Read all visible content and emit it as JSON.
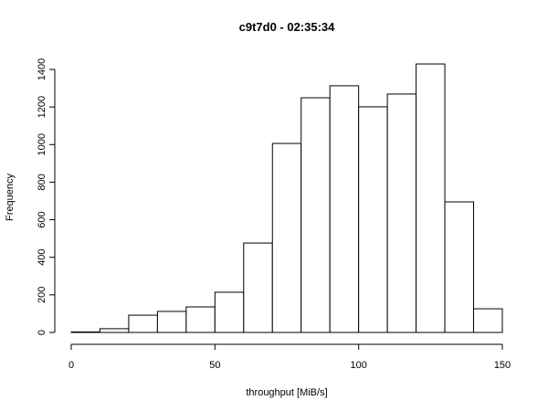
{
  "chart_data": {
    "type": "histogram",
    "title": "c9t7d0 - 02:35:34",
    "x_label": "throughput [MiB/s]",
    "y_label": "Frequency",
    "bins": [
      0,
      10,
      20,
      30,
      40,
      50,
      60,
      70,
      80,
      90,
      100,
      110,
      120,
      130,
      140,
      150
    ],
    "counts": [
      3,
      20,
      92,
      112,
      136,
      214,
      476,
      1006,
      1249,
      1313,
      1201,
      1269,
      1429,
      695,
      126
    ],
    "color": "#ffffff",
    "xlim": [
      0,
      150
    ],
    "xticks": [
      0,
      50,
      100,
      150
    ],
    "ylim": [
      0,
      1400
    ],
    "yticks": [
      0,
      200,
      400,
      600,
      800,
      1000,
      1200,
      1400
    ]
  }
}
